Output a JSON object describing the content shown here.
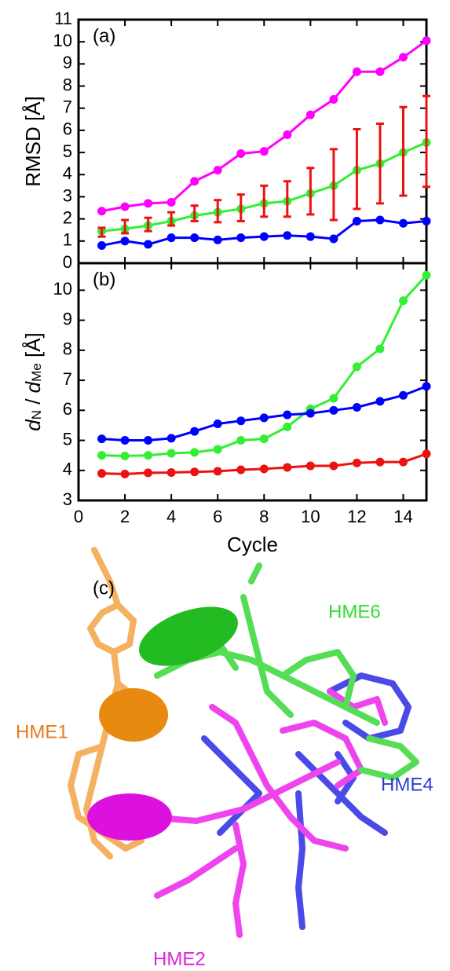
{
  "chart_data": [
    {
      "type": "line",
      "panel_label": "(a)",
      "ylabel": "RMSD [Å]",
      "x": [
        1,
        2,
        3,
        4,
        5,
        6,
        7,
        8,
        9,
        10,
        11,
        12,
        13,
        14,
        15
      ],
      "xlim": [
        0,
        15
      ],
      "xticks": [
        0,
        2,
        4,
        6,
        8,
        10,
        12,
        14
      ],
      "ylim": [
        0,
        11
      ],
      "yticks": [
        0,
        1,
        2,
        3,
        4,
        5,
        6,
        7,
        8,
        9,
        10,
        11
      ],
      "series": [
        {
          "color": "#ff00ff",
          "values": [
            2.35,
            2.55,
            2.7,
            2.75,
            3.7,
            4.2,
            4.95,
            5.05,
            5.8,
            6.7,
            7.4,
            8.65,
            8.65,
            9.3,
            10.05
          ]
        },
        {
          "color": "#33ee33",
          "values": [
            1.45,
            1.55,
            1.7,
            1.9,
            2.15,
            2.3,
            2.45,
            2.7,
            2.8,
            3.15,
            3.5,
            4.2,
            4.5,
            5.0,
            5.45
          ]
        },
        {
          "color": "#ee1111",
          "errorbar": true,
          "values": [
            1.4,
            1.65,
            1.75,
            2.0,
            2.25,
            2.35,
            2.5,
            2.8,
            2.9,
            3.25,
            3.55,
            4.25,
            4.5,
            5.05,
            5.5
          ],
          "errors": [
            0.2,
            0.3,
            0.3,
            0.3,
            0.35,
            0.5,
            0.6,
            0.7,
            0.8,
            1.05,
            1.6,
            1.8,
            1.8,
            2.0,
            2.05
          ]
        },
        {
          "color": "#0000ff",
          "values": [
            0.8,
            1.0,
            0.85,
            1.15,
            1.15,
            1.05,
            1.15,
            1.2,
            1.25,
            1.2,
            1.1,
            1.9,
            1.95,
            1.8,
            1.9
          ]
        }
      ]
    },
    {
      "type": "line",
      "panel_label": "(b)",
      "ylabel": [
        "d",
        "N",
        " / ",
        "d",
        "Me",
        " [Å]"
      ],
      "xlabel": "Cycle",
      "x": [
        1,
        2,
        3,
        4,
        5,
        6,
        7,
        8,
        9,
        10,
        11,
        12,
        13,
        14,
        15
      ],
      "xlim": [
        0,
        15
      ],
      "xticks": [
        0,
        2,
        4,
        6,
        8,
        10,
        12,
        14
      ],
      "ylim": [
        3,
        10.9
      ],
      "yticks": [
        3,
        4,
        5,
        6,
        7,
        8,
        9,
        10
      ],
      "series": [
        {
          "color": "#33ee33",
          "values": [
            4.5,
            4.48,
            4.5,
            4.57,
            4.6,
            4.7,
            5.0,
            5.05,
            5.45,
            6.05,
            6.4,
            7.45,
            8.05,
            9.65,
            10.5
          ]
        },
        {
          "color": "#0000ff",
          "values": [
            5.05,
            5.0,
            5.0,
            5.07,
            5.3,
            5.55,
            5.65,
            5.75,
            5.85,
            5.9,
            6.0,
            6.1,
            6.3,
            6.5,
            6.8
          ]
        },
        {
          "color": "#ee1111",
          "values": [
            3.9,
            3.88,
            3.92,
            3.93,
            3.95,
            3.97,
            4.02,
            4.05,
            4.1,
            4.15,
            4.15,
            4.25,
            4.28,
            4.28,
            4.55
          ]
        }
      ]
    }
  ],
  "figure_c": {
    "panel_label": "(c)",
    "labels": [
      "HME6",
      "HME1",
      "HME4",
      "HME2"
    ]
  }
}
